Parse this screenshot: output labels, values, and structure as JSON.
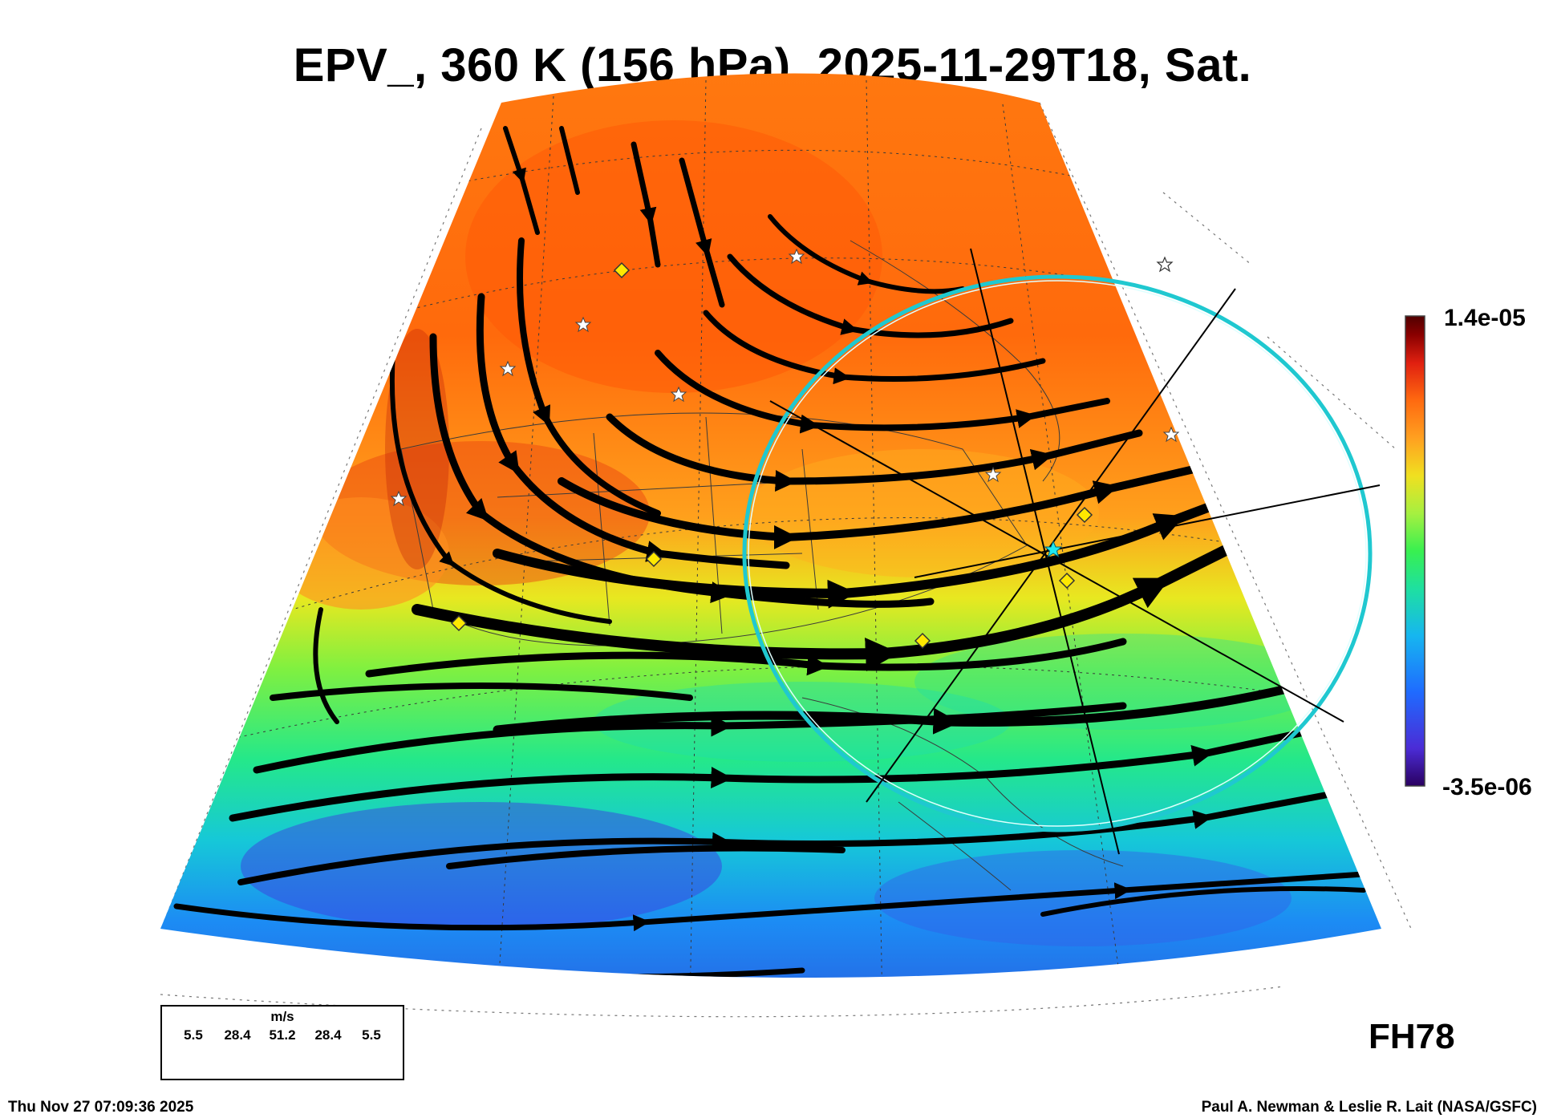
{
  "title": "EPV_, 360 K (156 hPa), 2025-11-29T18, Sat.",
  "colorbar": {
    "max_label": "1.4e-05",
    "min_label": "-3.5e-06",
    "colors": [
      "#2a0060",
      "#4b2cd6",
      "#1f6bff",
      "#16b6f0",
      "#1ee0a0",
      "#38f050",
      "#a6f040",
      "#f0e020",
      "#ffa020",
      "#ff6a10",
      "#e02010",
      "#8a0000",
      "#500000"
    ]
  },
  "forecast_hour": "FH78",
  "legend": {
    "unit": "m/s",
    "values": [
      "5.5",
      "28.4",
      "51.2",
      "28.4",
      "5.5"
    ]
  },
  "footer": {
    "run_time": "Thu Nov 27 07:09:36 2025",
    "credits": "Paul A. Newman & Leslie R. Lait (NASA/GSFC)"
  },
  "colors": {
    "ring": "#1fc8d0",
    "marker_diamond": "#ffe800",
    "marker_star": "#ffffff",
    "streamline": "#000000",
    "map_lines": "#333333"
  },
  "icons": [
    "yellow-diamond-marker-icon",
    "white-star-marker-icon",
    "cyan-star-marker-icon"
  ]
}
